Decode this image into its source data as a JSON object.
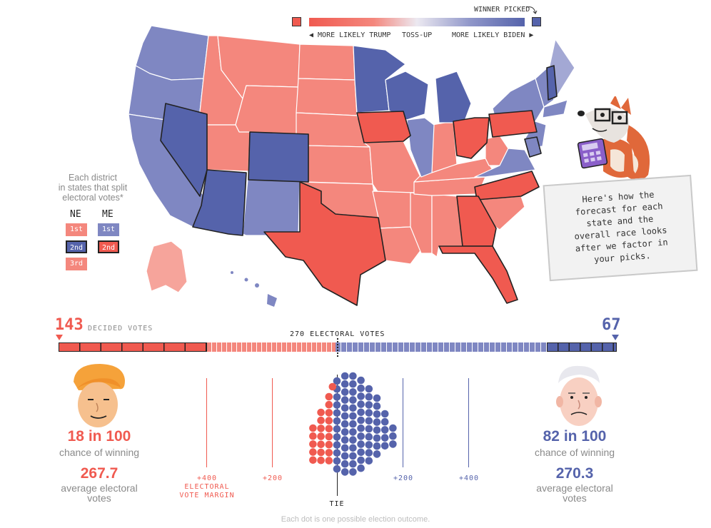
{
  "legend": {
    "winner_picked": "WINNER PICKED",
    "more_likely_trump": "◀ MORE LIKELY TRUMP",
    "toss_up": "TOSS-UP",
    "more_likely_biden": "MORE LIKELY BIDEN ▶",
    "colors": {
      "trump": "#f05a50",
      "biden": "#5563ab",
      "trump_light": "#f4877d",
      "biden_light": "#7f87c2"
    }
  },
  "districts": {
    "note": "Each district\nin states that split\nelectoral votes*",
    "ne_label": "NE",
    "me_label": "ME",
    "ne": [
      "1st",
      "2nd",
      "3rd"
    ],
    "me": [
      "1st",
      "2nd"
    ]
  },
  "bubble": {
    "text": "Here's how the\nforecast for each\nstate and the\noverall race looks\nafter we factor in\nyour picks."
  },
  "bar": {
    "trump_decided": "143",
    "decided_label": "DECIDED VOTES",
    "biden_decided": "67",
    "threshold_label": "270 ELECTORAL VOTES"
  },
  "trump": {
    "chance": "18 in 100",
    "chance_label": "chance of winning",
    "ev": "267.7",
    "ev_label": "average electoral votes"
  },
  "biden": {
    "chance": "82 in 100",
    "chance_label": "chance of winning",
    "ev": "270.3",
    "ev_label": "average electoral votes"
  },
  "axis": {
    "t400": "+400",
    "margin_label": "ELECTORAL VOTE MARGIN",
    "t200": "+200",
    "b200": "+200",
    "b400": "+400",
    "tie": "TIE"
  },
  "footer": "Each dot is one possible election outcome."
}
